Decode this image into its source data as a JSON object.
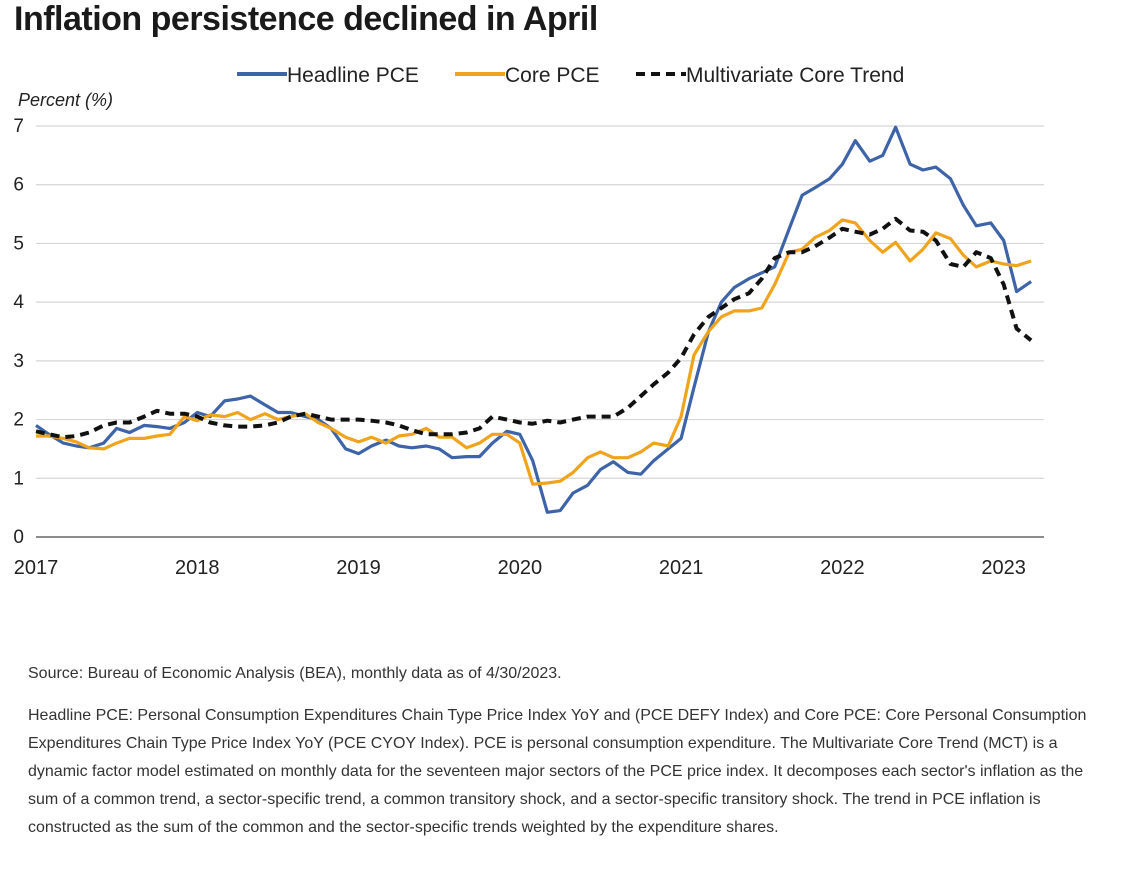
{
  "title": "Inflation persistence declined in April",
  "source_note": "Source: Bureau of Economic Analysis (BEA), monthly data as of 4/30/2023.",
  "definition_note": "Headline PCE: Personal Consumption Expenditures Chain Type Price Index YoY and (PCE DEFY Index) and Core PCE: Core Personal Consumption Expenditures Chain Type Price Index YoY (PCE CYOY Index). PCE is personal consumption expenditure. The Multivariate Core Trend (MCT) is a dynamic factor model estimated on monthly data for the seventeen major sectors of the PCE price index. It decomposes each sector's inflation as the sum of a common trend, a sector-specific trend, a common transitory shock, and a sector-specific transitory shock. The trend in PCE inflation is constructed as the sum of the common and the sector-specific trends weighted by the expenditure shares.",
  "chart_data": {
    "type": "line",
    "title": "Inflation persistence declined in April",
    "xlabel": "",
    "ylabel": "Percent (%)",
    "ylim": [
      0,
      7
    ],
    "yticks": [
      0,
      1,
      2,
      3,
      4,
      5,
      6,
      7
    ],
    "xlim": [
      2017,
      2023.25
    ],
    "xticks": [
      2017,
      2018,
      2019,
      2020,
      2021,
      2022,
      2023
    ],
    "xtick_labels": [
      "2017",
      "2018",
      "2019",
      "2020",
      "2021",
      "2022",
      "2023"
    ],
    "grid": "horizontal",
    "legend_position": "top",
    "series": [
      {
        "name": "Headline PCE",
        "color": "#3d63a8",
        "style": "solid",
        "points": [
          [
            2017.0,
            1.9
          ],
          [
            2017.08,
            1.75
          ],
          [
            2017.17,
            1.6
          ],
          [
            2017.25,
            1.55
          ],
          [
            2017.33,
            1.52
          ],
          [
            2017.42,
            1.6
          ],
          [
            2017.5,
            1.85
          ],
          [
            2017.58,
            1.78
          ],
          [
            2017.67,
            1.9
          ],
          [
            2017.75,
            1.88
          ],
          [
            2017.83,
            1.85
          ],
          [
            2017.92,
            1.95
          ],
          [
            2018.0,
            2.12
          ],
          [
            2018.08,
            2.05
          ],
          [
            2018.17,
            2.32
          ],
          [
            2018.25,
            2.35
          ],
          [
            2018.33,
            2.4
          ],
          [
            2018.42,
            2.25
          ],
          [
            2018.5,
            2.12
          ],
          [
            2018.58,
            2.12
          ],
          [
            2018.67,
            2.05
          ],
          [
            2018.75,
            2.0
          ],
          [
            2018.83,
            1.85
          ],
          [
            2018.92,
            1.5
          ],
          [
            2019.0,
            1.42
          ],
          [
            2019.08,
            1.55
          ],
          [
            2019.17,
            1.65
          ],
          [
            2019.25,
            1.55
          ],
          [
            2019.33,
            1.52
          ],
          [
            2019.42,
            1.55
          ],
          [
            2019.5,
            1.5
          ],
          [
            2019.58,
            1.35
          ],
          [
            2019.67,
            1.37
          ],
          [
            2019.75,
            1.37
          ],
          [
            2019.83,
            1.6
          ],
          [
            2019.92,
            1.8
          ],
          [
            2020.0,
            1.75
          ],
          [
            2020.08,
            1.3
          ],
          [
            2020.17,
            0.42
          ],
          [
            2020.25,
            0.45
          ],
          [
            2020.33,
            0.75
          ],
          [
            2020.42,
            0.88
          ],
          [
            2020.5,
            1.15
          ],
          [
            2020.58,
            1.28
          ],
          [
            2020.67,
            1.1
          ],
          [
            2020.75,
            1.07
          ],
          [
            2020.83,
            1.3
          ],
          [
            2020.92,
            1.5
          ],
          [
            2021.0,
            1.68
          ],
          [
            2021.08,
            2.55
          ],
          [
            2021.17,
            3.5
          ],
          [
            2021.25,
            4.0
          ],
          [
            2021.33,
            4.25
          ],
          [
            2021.42,
            4.4
          ],
          [
            2021.5,
            4.5
          ],
          [
            2021.58,
            4.6
          ],
          [
            2021.67,
            5.25
          ],
          [
            2021.75,
            5.82
          ],
          [
            2021.83,
            5.95
          ],
          [
            2021.92,
            6.1
          ],
          [
            2022.0,
            6.35
          ],
          [
            2022.08,
            6.75
          ],
          [
            2022.17,
            6.4
          ],
          [
            2022.25,
            6.5
          ],
          [
            2022.33,
            6.98
          ],
          [
            2022.42,
            6.35
          ],
          [
            2022.5,
            6.25
          ],
          [
            2022.58,
            6.3
          ],
          [
            2022.67,
            6.1
          ],
          [
            2022.75,
            5.65
          ],
          [
            2022.83,
            5.3
          ],
          [
            2022.92,
            5.35
          ],
          [
            2023.0,
            5.05
          ],
          [
            2023.08,
            4.18
          ],
          [
            2023.17,
            4.35
          ]
        ]
      },
      {
        "name": "Core PCE",
        "color": "#f0a31c",
        "style": "solid",
        "points": [
          [
            2017.0,
            1.72
          ],
          [
            2017.08,
            1.72
          ],
          [
            2017.17,
            1.68
          ],
          [
            2017.25,
            1.62
          ],
          [
            2017.33,
            1.52
          ],
          [
            2017.42,
            1.5
          ],
          [
            2017.5,
            1.6
          ],
          [
            2017.58,
            1.68
          ],
          [
            2017.67,
            1.68
          ],
          [
            2017.75,
            1.72
          ],
          [
            2017.83,
            1.75
          ],
          [
            2017.92,
            2.05
          ],
          [
            2018.0,
            1.98
          ],
          [
            2018.08,
            2.08
          ],
          [
            2018.17,
            2.05
          ],
          [
            2018.25,
            2.12
          ],
          [
            2018.33,
            2.0
          ],
          [
            2018.42,
            2.1
          ],
          [
            2018.5,
            2.0
          ],
          [
            2018.58,
            2.05
          ],
          [
            2018.67,
            2.1
          ],
          [
            2018.75,
            1.95
          ],
          [
            2018.83,
            1.85
          ],
          [
            2018.92,
            1.7
          ],
          [
            2019.0,
            1.62
          ],
          [
            2019.08,
            1.7
          ],
          [
            2019.17,
            1.6
          ],
          [
            2019.25,
            1.72
          ],
          [
            2019.33,
            1.75
          ],
          [
            2019.42,
            1.85
          ],
          [
            2019.5,
            1.7
          ],
          [
            2019.58,
            1.7
          ],
          [
            2019.67,
            1.52
          ],
          [
            2019.75,
            1.6
          ],
          [
            2019.83,
            1.75
          ],
          [
            2019.92,
            1.75
          ],
          [
            2020.0,
            1.6
          ],
          [
            2020.08,
            0.9
          ],
          [
            2020.17,
            0.92
          ],
          [
            2020.25,
            0.95
          ],
          [
            2020.33,
            1.1
          ],
          [
            2020.42,
            1.35
          ],
          [
            2020.5,
            1.45
          ],
          [
            2020.58,
            1.35
          ],
          [
            2020.67,
            1.35
          ],
          [
            2020.75,
            1.45
          ],
          [
            2020.83,
            1.6
          ],
          [
            2020.92,
            1.55
          ],
          [
            2021.0,
            2.05
          ],
          [
            2021.08,
            3.1
          ],
          [
            2021.17,
            3.5
          ],
          [
            2021.25,
            3.75
          ],
          [
            2021.33,
            3.85
          ],
          [
            2021.42,
            3.85
          ],
          [
            2021.5,
            3.9
          ],
          [
            2021.58,
            4.3
          ],
          [
            2021.67,
            4.85
          ],
          [
            2021.75,
            4.9
          ],
          [
            2021.83,
            5.1
          ],
          [
            2021.92,
            5.22
          ],
          [
            2022.0,
            5.4
          ],
          [
            2022.08,
            5.35
          ],
          [
            2022.17,
            5.05
          ],
          [
            2022.25,
            4.85
          ],
          [
            2022.33,
            5.02
          ],
          [
            2022.42,
            4.7
          ],
          [
            2022.5,
            4.9
          ],
          [
            2022.58,
            5.18
          ],
          [
            2022.67,
            5.08
          ],
          [
            2022.75,
            4.8
          ],
          [
            2022.83,
            4.6
          ],
          [
            2022.92,
            4.7
          ],
          [
            2023.0,
            4.65
          ],
          [
            2023.08,
            4.62
          ],
          [
            2023.17,
            4.7
          ]
        ]
      },
      {
        "name": "Multivariate Core Trend",
        "color": "#111111",
        "style": "dashed",
        "points": [
          [
            2017.0,
            1.8
          ],
          [
            2017.08,
            1.75
          ],
          [
            2017.17,
            1.7
          ],
          [
            2017.25,
            1.72
          ],
          [
            2017.33,
            1.78
          ],
          [
            2017.42,
            1.9
          ],
          [
            2017.5,
            1.95
          ],
          [
            2017.58,
            1.95
          ],
          [
            2017.67,
            2.05
          ],
          [
            2017.75,
            2.15
          ],
          [
            2017.83,
            2.1
          ],
          [
            2017.92,
            2.1
          ],
          [
            2018.0,
            2.05
          ],
          [
            2018.08,
            1.95
          ],
          [
            2018.17,
            1.9
          ],
          [
            2018.25,
            1.88
          ],
          [
            2018.33,
            1.88
          ],
          [
            2018.42,
            1.9
          ],
          [
            2018.5,
            1.95
          ],
          [
            2018.58,
            2.05
          ],
          [
            2018.67,
            2.1
          ],
          [
            2018.75,
            2.05
          ],
          [
            2018.83,
            2.0
          ],
          [
            2018.92,
            2.0
          ],
          [
            2019.0,
            2.0
          ],
          [
            2019.08,
            1.98
          ],
          [
            2019.17,
            1.95
          ],
          [
            2019.25,
            1.9
          ],
          [
            2019.33,
            1.82
          ],
          [
            2019.42,
            1.75
          ],
          [
            2019.5,
            1.75
          ],
          [
            2019.58,
            1.75
          ],
          [
            2019.67,
            1.78
          ],
          [
            2019.75,
            1.85
          ],
          [
            2019.83,
            2.05
          ],
          [
            2019.92,
            2.0
          ],
          [
            2020.0,
            1.95
          ],
          [
            2020.08,
            1.93
          ],
          [
            2020.17,
            1.98
          ],
          [
            2020.25,
            1.95
          ],
          [
            2020.33,
            2.0
          ],
          [
            2020.42,
            2.05
          ],
          [
            2020.5,
            2.05
          ],
          [
            2020.58,
            2.05
          ],
          [
            2020.67,
            2.2
          ],
          [
            2020.75,
            2.4
          ],
          [
            2020.83,
            2.6
          ],
          [
            2020.92,
            2.8
          ],
          [
            2021.0,
            3.05
          ],
          [
            2021.08,
            3.45
          ],
          [
            2021.17,
            3.75
          ],
          [
            2021.25,
            3.9
          ],
          [
            2021.33,
            4.05
          ],
          [
            2021.42,
            4.15
          ],
          [
            2021.5,
            4.4
          ],
          [
            2021.58,
            4.75
          ],
          [
            2021.67,
            4.85
          ],
          [
            2021.75,
            4.85
          ],
          [
            2021.83,
            4.95
          ],
          [
            2021.92,
            5.1
          ],
          [
            2022.0,
            5.25
          ],
          [
            2022.08,
            5.2
          ],
          [
            2022.17,
            5.15
          ],
          [
            2022.25,
            5.25
          ],
          [
            2022.33,
            5.42
          ],
          [
            2022.42,
            5.22
          ],
          [
            2022.5,
            5.2
          ],
          [
            2022.58,
            5.05
          ],
          [
            2022.67,
            4.65
          ],
          [
            2022.75,
            4.6
          ],
          [
            2022.83,
            4.85
          ],
          [
            2022.92,
            4.75
          ],
          [
            2023.0,
            4.3
          ],
          [
            2023.08,
            3.55
          ],
          [
            2023.17,
            3.35
          ]
        ]
      }
    ]
  }
}
